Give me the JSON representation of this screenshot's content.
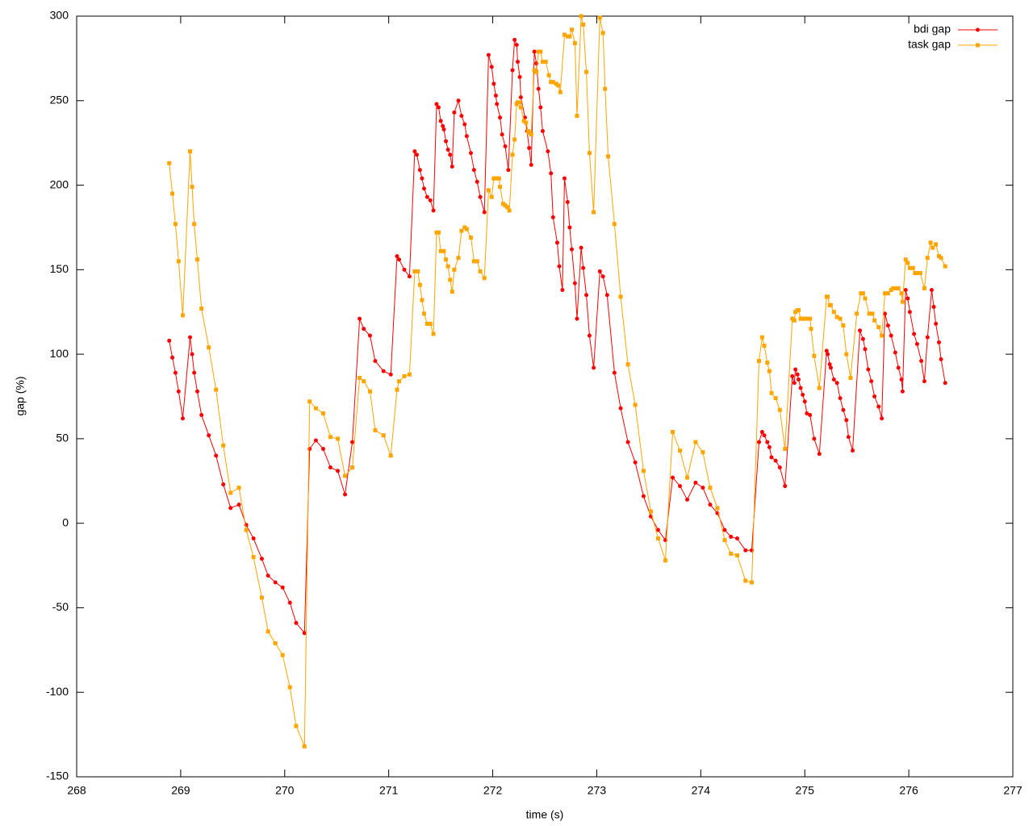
{
  "chart_data": {
    "type": "line",
    "xlabel": "time (s)",
    "ylabel": "gap (%)",
    "xlim": [
      268,
      277
    ],
    "xticks": [
      268,
      269,
      270,
      271,
      272,
      273,
      274,
      275,
      276,
      277
    ],
    "ylim": [
      -150,
      300
    ],
    "yticks": [
      -150,
      -100,
      -50,
      0,
      50,
      100,
      150,
      200,
      250,
      300
    ],
    "grid": false,
    "legend": "top-right",
    "series": [
      {
        "name": "bdi gap",
        "color": "#ff0000",
        "marker": "circle",
        "x": [
          268.89,
          268.92,
          268.95,
          268.98,
          269.02,
          269.09,
          269.11,
          269.13,
          269.16,
          269.2,
          269.27,
          269.34,
          269.41,
          269.48,
          269.56,
          269.63,
          269.7,
          269.78,
          269.84,
          269.91,
          269.98,
          270.05,
          270.11,
          270.19,
          270.24,
          270.3,
          270.37,
          270.44,
          270.51,
          270.58,
          270.65,
          270.72,
          270.76,
          270.82,
          270.87,
          270.95,
          271.02,
          271.08,
          271.1,
          271.15,
          271.2,
          271.25,
          271.27,
          271.3,
          271.32,
          271.34,
          271.37,
          271.4,
          271.43,
          271.46,
          271.48,
          271.5,
          271.52,
          271.53,
          271.55,
          271.57,
          271.59,
          271.61,
          271.63,
          271.67,
          271.7,
          271.73,
          271.75,
          271.79,
          271.82,
          271.85,
          271.88,
          271.92,
          271.96,
          271.99,
          272.01,
          272.03,
          272.04,
          272.07,
          272.09,
          272.12,
          272.15,
          272.19,
          272.21,
          272.23,
          272.24,
          272.26,
          272.27,
          272.31,
          272.33,
          272.35,
          272.37,
          272.4,
          272.42,
          272.44,
          272.46,
          272.48,
          272.53,
          272.56,
          272.58,
          272.62,
          272.64,
          272.67,
          272.69,
          272.72,
          272.74,
          272.76,
          272.79,
          272.81,
          272.85,
          272.87,
          272.9,
          272.93,
          272.97,
          273.03,
          273.06,
          273.1,
          273.17,
          273.23,
          273.3,
          273.37,
          273.45,
          273.52,
          273.59,
          273.66,
          273.73,
          273.8,
          273.87,
          273.95,
          274.02,
          274.09,
          274.16,
          274.23,
          274.29,
          274.35,
          274.43,
          274.49,
          274.56,
          274.59,
          274.61,
          274.64,
          274.66,
          274.68,
          274.72,
          274.76,
          274.81,
          274.88,
          274.9,
          274.91,
          274.93,
          274.94,
          274.96,
          274.98,
          275.0,
          275.02,
          275.05,
          275.09,
          275.14,
          275.21,
          275.22,
          275.24,
          275.25,
          275.28,
          275.31,
          275.34,
          275.37,
          275.4,
          275.42,
          275.46,
          275.53,
          275.56,
          275.58,
          275.61,
          275.64,
          275.67,
          275.71,
          275.74,
          275.77,
          275.8,
          275.83,
          275.87,
          275.9,
          275.93,
          275.94,
          275.97,
          275.99,
          276.01,
          276.05,
          276.08,
          276.12,
          276.15,
          276.18,
          276.22,
          276.24,
          276.26,
          276.29,
          276.31,
          276.35
        ],
        "values": [
          108,
          98,
          89,
          78,
          62,
          110,
          100,
          89,
          78,
          64,
          52,
          40,
          23,
          9,
          11,
          -1,
          -9,
          -21,
          -31,
          -35,
          -38,
          -47,
          -59,
          -65,
          44,
          49,
          44,
          33,
          31,
          17,
          48,
          121,
          115,
          111,
          96,
          90,
          88,
          158,
          156,
          150,
          146,
          220,
          218,
          209,
          204,
          198,
          193,
          191,
          185,
          248,
          246,
          238,
          235,
          233,
          226,
          221,
          218,
          211,
          243,
          250,
          241,
          236,
          229,
          219,
          209,
          202,
          193,
          184,
          277,
          270,
          260,
          253,
          248,
          240,
          230,
          223,
          209,
          268,
          286,
          283,
          273,
          264,
          252,
          240,
          232,
          222,
          212,
          279,
          272,
          257,
          246,
          232,
          220,
          207,
          181,
          166,
          152,
          138,
          204,
          190,
          175,
          162,
          142,
          121,
          163,
          151,
          135,
          111,
          92,
          149,
          146,
          135,
          89,
          68,
          48,
          36,
          16,
          4,
          -4,
          -10,
          27,
          22,
          14,
          24,
          21,
          11,
          6,
          -4,
          -8,
          -9,
          -16,
          -16,
          48,
          54,
          52,
          48,
          45,
          39,
          37,
          33,
          22,
          87,
          83,
          91,
          88,
          85,
          80,
          76,
          72,
          65,
          64,
          50,
          41,
          102,
          100,
          94,
          92,
          85,
          83,
          74,
          67,
          61,
          51,
          43,
          114,
          109,
          103,
          91,
          84,
          75,
          69,
          62,
          124,
          117,
          111,
          101,
          92,
          85,
          78,
          138,
          133,
          125,
          112,
          106,
          96,
          84,
          110,
          138,
          128,
          118,
          107,
          97,
          83
        ]
      },
      {
        "name": "task gap",
        "color": "#ffa500",
        "marker": "square",
        "x": [
          268.89,
          268.92,
          268.95,
          268.98,
          269.02,
          269.09,
          269.11,
          269.13,
          269.16,
          269.2,
          269.27,
          269.34,
          269.41,
          269.48,
          269.56,
          269.63,
          269.7,
          269.78,
          269.84,
          269.91,
          269.98,
          270.05,
          270.11,
          270.19,
          270.24,
          270.3,
          270.37,
          270.44,
          270.51,
          270.58,
          270.65,
          270.72,
          270.76,
          270.82,
          270.87,
          270.95,
          271.02,
          271.08,
          271.1,
          271.15,
          271.2,
          271.25,
          271.28,
          271.3,
          271.32,
          271.34,
          271.37,
          271.4,
          271.43,
          271.46,
          271.48,
          271.5,
          271.53,
          271.55,
          271.57,
          271.59,
          271.61,
          271.63,
          271.67,
          271.7,
          271.73,
          271.75,
          271.79,
          271.82,
          271.85,
          271.88,
          271.92,
          271.96,
          271.99,
          272.01,
          272.03,
          272.06,
          272.07,
          272.1,
          272.12,
          272.14,
          272.16,
          272.19,
          272.21,
          272.23,
          272.24,
          272.26,
          272.27,
          272.3,
          272.32,
          272.34,
          272.35,
          272.37,
          272.4,
          272.42,
          272.44,
          272.46,
          272.48,
          272.51,
          272.54,
          272.56,
          272.58,
          272.61,
          272.63,
          272.65,
          272.69,
          272.72,
          272.74,
          272.76,
          272.79,
          272.81,
          272.85,
          272.87,
          272.9,
          272.93,
          272.97,
          273.03,
          273.06,
          273.08,
          273.11,
          273.17,
          273.23,
          273.3,
          273.37,
          273.45,
          273.52,
          273.59,
          273.66,
          273.73,
          273.8,
          273.87,
          273.95,
          274.02,
          274.09,
          274.16,
          274.23,
          274.29,
          274.35,
          274.43,
          274.49,
          274.56,
          274.59,
          274.61,
          274.64,
          274.66,
          274.68,
          274.72,
          274.76,
          274.81,
          274.88,
          274.9,
          274.91,
          274.93,
          274.94,
          274.96,
          274.98,
          275.0,
          275.02,
          275.05,
          275.06,
          275.09,
          275.14,
          275.21,
          275.22,
          275.24,
          275.25,
          275.28,
          275.31,
          275.34,
          275.37,
          275.4,
          275.44,
          275.5,
          275.54,
          275.56,
          275.58,
          275.62,
          275.65,
          275.67,
          275.71,
          275.74,
          275.77,
          275.8,
          275.83,
          275.85,
          275.87,
          275.9,
          275.93,
          275.94,
          275.97,
          275.99,
          276.01,
          276.04,
          276.06,
          276.08,
          276.11,
          276.15,
          276.18,
          276.21,
          276.23,
          276.26,
          276.29,
          276.31,
          276.35
        ],
        "values": [
          213,
          195,
          177,
          155,
          123,
          220,
          199,
          177,
          156,
          127,
          104,
          79,
          46,
          18,
          21,
          -4,
          -20,
          -44,
          -64,
          -71,
          -78,
          -97,
          -120,
          -132,
          72,
          68,
          65,
          51,
          50,
          28,
          33,
          86,
          84,
          78,
          55,
          52,
          40,
          79,
          84,
          87,
          88,
          149,
          149,
          141,
          132,
          124,
          118,
          118,
          112,
          172,
          172,
          161,
          161,
          156,
          152,
          144,
          137,
          150,
          157,
          173,
          175,
          174,
          169,
          155,
          155,
          149,
          145,
          197,
          193,
          204,
          204,
          204,
          199,
          189,
          188,
          187,
          185,
          218,
          227,
          248,
          249,
          249,
          246,
          238,
          237,
          232,
          231,
          230,
          268,
          267,
          279,
          279,
          273,
          273,
          265,
          261,
          261,
          260,
          259,
          255,
          289,
          288,
          288,
          292,
          284,
          241,
          300,
          295,
          267,
          219,
          184,
          299,
          290,
          257,
          217,
          177,
          134,
          94,
          70,
          31,
          7,
          -9,
          -22,
          54,
          43,
          27,
          48,
          42,
          21,
          9,
          -10,
          -18,
          -19,
          -34,
          -35,
          96,
          110,
          105,
          95,
          90,
          77,
          74,
          67,
          44,
          121,
          120,
          125,
          126,
          126,
          121,
          121,
          121,
          121,
          121,
          115,
          99,
          80,
          134,
          134,
          129,
          129,
          125,
          122,
          121,
          117,
          100,
          86,
          124,
          136,
          136,
          133,
          124,
          124,
          120,
          116,
          111,
          136,
          136,
          138,
          139,
          139,
          139,
          136,
          131,
          156,
          154,
          151,
          151,
          148,
          148,
          148,
          139,
          157,
          166,
          163,
          165,
          158,
          157,
          152
        ]
      }
    ]
  }
}
